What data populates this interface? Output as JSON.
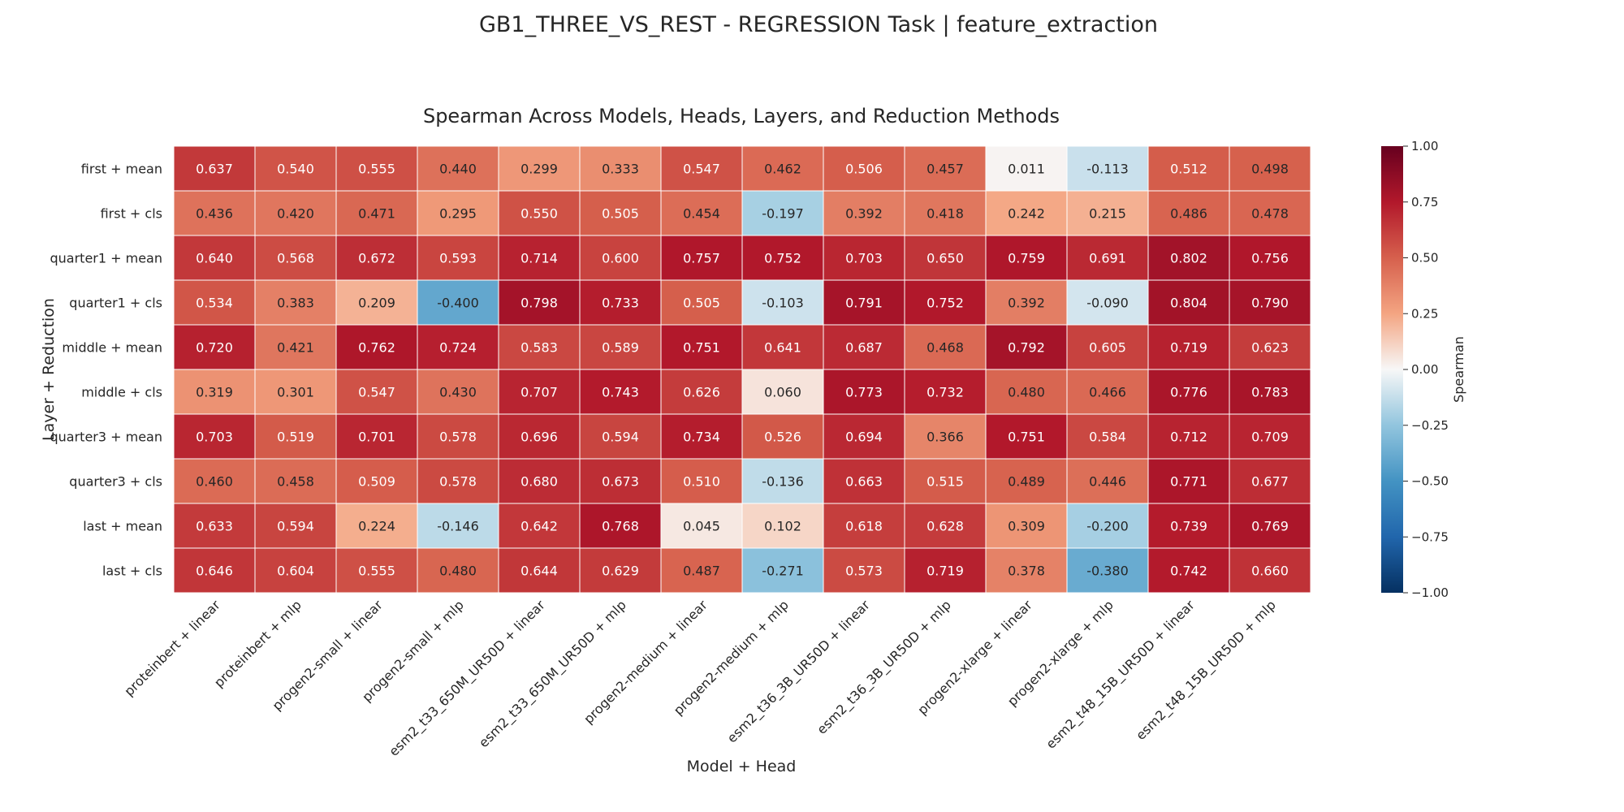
{
  "figure": {
    "suptitle": "GB1_THREE_VS_REST - REGRESSION Task | feature_extraction"
  },
  "chart_data": {
    "type": "heatmap",
    "title": "Spearman Across Models, Heads, Layers, and Reduction Methods",
    "xlabel": "Model + Head",
    "ylabel": "Layer + Reduction",
    "colorbar_label": "Spearman",
    "colormap": "RdBu_r",
    "vmin": -1.0,
    "vmax": 1.0,
    "colorbar_ticks": [
      "1.00",
      "0.75",
      "0.50",
      "0.25",
      "0.00",
      "−0.25",
      "−0.50",
      "−0.75",
      "−1.00"
    ],
    "colorbar_tick_values": [
      1.0,
      0.75,
      0.5,
      0.25,
      0.0,
      -0.25,
      -0.5,
      -0.75,
      -1.0
    ],
    "x_categories": [
      "proteinbert + linear",
      "proteinbert + mlp",
      "progen2-small + linear",
      "progen2-small + mlp",
      "esm2_t33_650M_UR50D + linear",
      "esm2_t33_650M_UR50D + mlp",
      "progen2-medium + linear",
      "progen2-medium + mlp",
      "esm2_t36_3B_UR50D + linear",
      "esm2_t36_3B_UR50D + mlp",
      "progen2-xlarge + linear",
      "progen2-xlarge + mlp",
      "esm2_t48_15B_UR50D + linear",
      "esm2_t48_15B_UR50D + mlp"
    ],
    "y_categories": [
      "first + mean",
      "first + cls",
      "quarter1 + mean",
      "quarter1 + cls",
      "middle + mean",
      "middle + cls",
      "quarter3 + mean",
      "quarter3 + cls",
      "last + mean",
      "last + cls"
    ],
    "values": [
      [
        0.637,
        0.54,
        0.555,
        0.44,
        0.299,
        0.333,
        0.547,
        0.462,
        0.506,
        0.457,
        0.011,
        -0.113,
        0.512,
        0.498
      ],
      [
        0.436,
        0.42,
        0.471,
        0.295,
        0.55,
        0.505,
        0.454,
        -0.197,
        0.392,
        0.418,
        0.242,
        0.215,
        0.486,
        0.478
      ],
      [
        0.64,
        0.568,
        0.672,
        0.593,
        0.714,
        0.6,
        0.757,
        0.752,
        0.703,
        0.65,
        0.759,
        0.691,
        0.802,
        0.756
      ],
      [
        0.534,
        0.383,
        0.209,
        -0.4,
        0.798,
        0.733,
        0.505,
        -0.103,
        0.791,
        0.752,
        0.392,
        -0.09,
        0.804,
        0.79
      ],
      [
        0.72,
        0.421,
        0.762,
        0.724,
        0.583,
        0.589,
        0.751,
        0.641,
        0.687,
        0.468,
        0.792,
        0.605,
        0.719,
        0.623
      ],
      [
        0.319,
        0.301,
        0.547,
        0.43,
        0.707,
        0.743,
        0.626,
        0.06,
        0.773,
        0.732,
        0.48,
        0.466,
        0.776,
        0.783
      ],
      [
        0.703,
        0.519,
        0.701,
        0.578,
        0.696,
        0.594,
        0.734,
        0.526,
        0.694,
        0.366,
        0.751,
        0.584,
        0.712,
        0.709
      ],
      [
        0.46,
        0.458,
        0.509,
        0.578,
        0.68,
        0.673,
        0.51,
        -0.136,
        0.663,
        0.515,
        0.489,
        0.446,
        0.771,
        0.677
      ],
      [
        0.633,
        0.594,
        0.224,
        -0.146,
        0.642,
        0.768,
        0.045,
        0.102,
        0.618,
        0.628,
        0.309,
        -0.2,
        0.739,
        0.769
      ],
      [
        0.646,
        0.604,
        0.555,
        0.48,
        0.644,
        0.629,
        0.487,
        -0.271,
        0.573,
        0.719,
        0.378,
        -0.38,
        0.742,
        0.66
      ]
    ]
  }
}
